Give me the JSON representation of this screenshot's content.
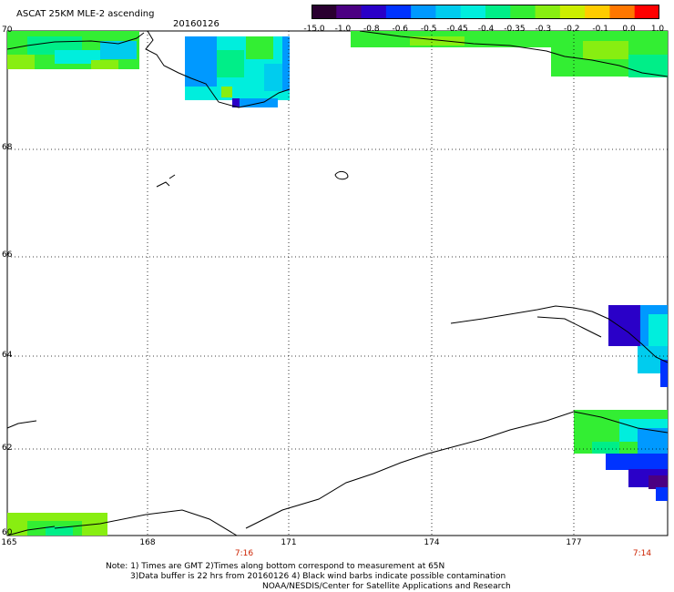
{
  "header": {
    "title": "ASCAT 25KM MLE-2 ascending",
    "date": "20160126"
  },
  "colorbar": {
    "labels": [
      "-15.0",
      "-1.0",
      "-0.8",
      "-0.6",
      "-0.5",
      "-0.45",
      "-0.4",
      "-0.35",
      "-0.3",
      "-0.2",
      "-0.1",
      "0.0",
      "1.0"
    ],
    "colors": [
      "#2a0030",
      "#4b0082",
      "#2a00c8",
      "#0033ff",
      "#0099ff",
      "#00ccee",
      "#00eedd",
      "#00ee88",
      "#33ee33",
      "#88ee11",
      "#ccee00",
      "#ffcc00",
      "#ff7700",
      "#ff0000"
    ]
  },
  "axes": {
    "lat_labels": [
      "70",
      "68",
      "66",
      "64",
      "62",
      "60"
    ],
    "lon_labels": [
      "165",
      "168",
      "171",
      "174",
      "177"
    ]
  },
  "time_labels": [
    "7:16",
    "7:14"
  ],
  "notes": {
    "line1": "Note: 1) Times are GMT 2)Times along bottom correspond to measurement at 65N",
    "line2": "3)Data buffer is 22 hrs from 20160126 4) Black wind barbs indicate possible contamination",
    "line3": "NOAA/NESDIS/Center for Satellite Applications and Research"
  }
}
